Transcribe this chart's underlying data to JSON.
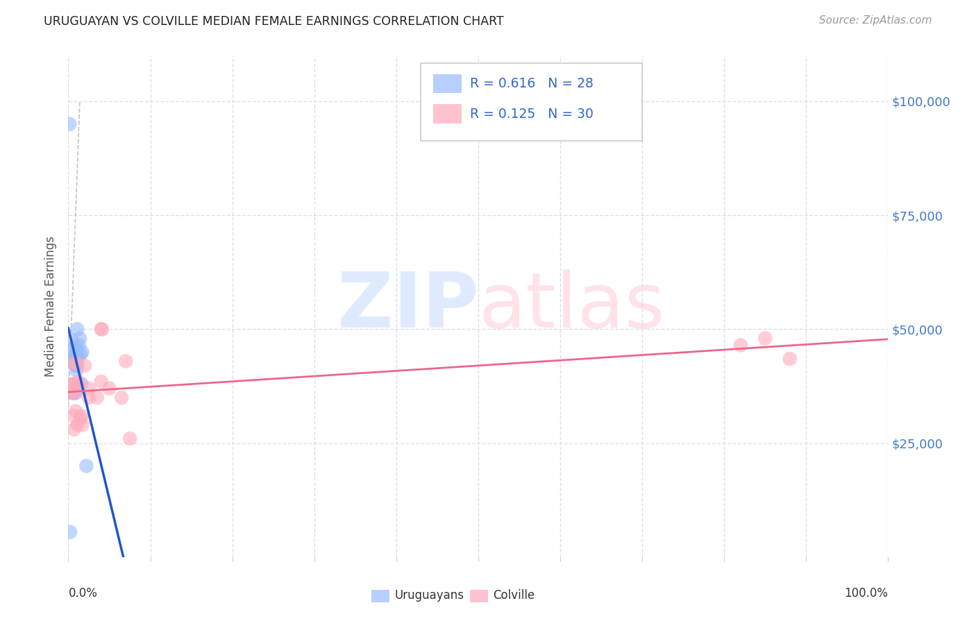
{
  "title": "URUGUAYAN VS COLVILLE MEDIAN FEMALE EARNINGS CORRELATION CHART",
  "source": "Source: ZipAtlas.com",
  "ylabel": "Median Female Earnings",
  "ytick_values": [
    25000,
    50000,
    75000,
    100000
  ],
  "legend_blue_r": "R = 0.616",
  "legend_blue_n": "N = 28",
  "legend_pink_r": "R = 0.125",
  "legend_pink_n": "N = 30",
  "legend_label_blue": "Uruguayans",
  "legend_label_pink": "Colville",
  "blue_color": "#99BBFF",
  "pink_color": "#FFAABB",
  "blue_line_color": "#2255CC",
  "pink_line_color": "#EE6688",
  "blue_scatter": [
    [
      0.0015,
      95000
    ],
    [
      0.0022,
      5500
    ],
    [
      0.004,
      43000
    ],
    [
      0.005,
      47500
    ],
    [
      0.005,
      44500
    ],
    [
      0.006,
      36000
    ],
    [
      0.007,
      44000
    ],
    [
      0.007,
      46000
    ],
    [
      0.008,
      43500
    ],
    [
      0.008,
      43000
    ],
    [
      0.009,
      42000
    ],
    [
      0.009,
      42500
    ],
    [
      0.009,
      44000
    ],
    [
      0.009,
      36000
    ],
    [
      0.01,
      46000
    ],
    [
      0.01,
      43000
    ],
    [
      0.01,
      41000
    ],
    [
      0.011,
      50000
    ],
    [
      0.011,
      44000
    ],
    [
      0.011,
      42000
    ],
    [
      0.012,
      37000
    ],
    [
      0.012,
      44000
    ],
    [
      0.013,
      46500
    ],
    [
      0.014,
      48000
    ],
    [
      0.015,
      44500
    ],
    [
      0.016,
      38000
    ],
    [
      0.017,
      45000
    ],
    [
      0.022,
      20000
    ]
  ],
  "pink_scatter": [
    [
      0.003,
      38000
    ],
    [
      0.004,
      36000
    ],
    [
      0.005,
      42500
    ],
    [
      0.006,
      31000
    ],
    [
      0.007,
      28000
    ],
    [
      0.007,
      38000
    ],
    [
      0.008,
      37000
    ],
    [
      0.008,
      36000
    ],
    [
      0.009,
      32000
    ],
    [
      0.01,
      42500
    ],
    [
      0.011,
      29000
    ],
    [
      0.012,
      38500
    ],
    [
      0.013,
      38000
    ],
    [
      0.015,
      30500
    ],
    [
      0.016,
      31000
    ],
    [
      0.017,
      29000
    ],
    [
      0.02,
      42000
    ],
    [
      0.025,
      35000
    ],
    [
      0.025,
      37000
    ],
    [
      0.035,
      35000
    ],
    [
      0.04,
      38500
    ],
    [
      0.04,
      50000
    ],
    [
      0.041,
      50000
    ],
    [
      0.05,
      37000
    ],
    [
      0.065,
      35000
    ],
    [
      0.07,
      43000
    ],
    [
      0.075,
      26000
    ],
    [
      0.82,
      46500
    ],
    [
      0.85,
      48000
    ],
    [
      0.88,
      43500
    ]
  ],
  "xlim": [
    0,
    1.0
  ],
  "ylim": [
    0,
    110000
  ],
  "grid_color": "#DDDDEE",
  "bg_color": "#FFFFFF",
  "blue_line_xlim": [
    0.0,
    1.0
  ],
  "pink_line_xlim": [
    0.0,
    1.0
  ]
}
